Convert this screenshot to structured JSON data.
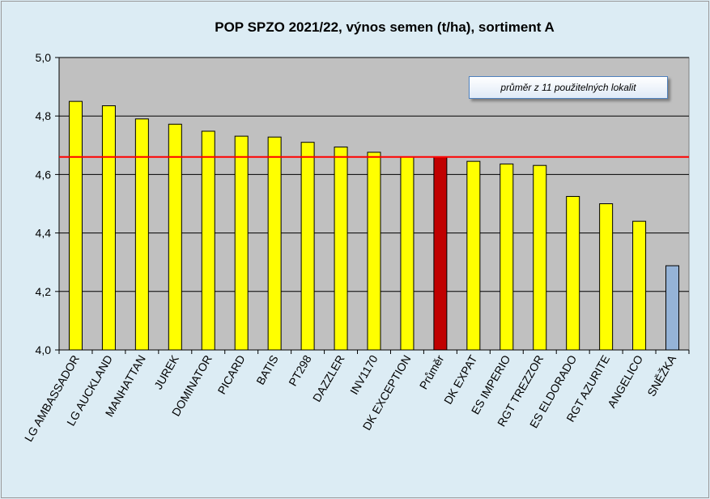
{
  "chart_data": {
    "type": "bar",
    "title": "POP SPZO 2021/22, výnos semen (t/ha), sortiment A",
    "xlabel": "",
    "ylabel": "",
    "ylim": [
      4.0,
      5.0
    ],
    "yticks": [
      "4,0",
      "4,2",
      "4,4",
      "4,6",
      "4,8",
      "5,0"
    ],
    "yticks_values": [
      4.0,
      4.2,
      4.4,
      4.6,
      4.8,
      5.0
    ],
    "grid": true,
    "categories": [
      "LG AMBASSADOR",
      "LG AUCKLAND",
      "MANHATTAN",
      "JUREK",
      "DOMINATOR",
      "PICARD",
      "BATIS",
      "PT298",
      "DAZZLER",
      "INV1170",
      "DK EXCEPTION",
      "Průměr",
      "DK EXPAT",
      "ES IMPERIO",
      "RGT TREZZOR",
      "ES ELDORADO",
      "RGT AZURITE",
      "ANGELICO",
      "SNĚŽKA"
    ],
    "values": [
      4.85,
      4.835,
      4.79,
      4.772,
      4.748,
      4.731,
      4.728,
      4.71,
      4.694,
      4.676,
      4.66,
      4.66,
      4.645,
      4.636,
      4.631,
      4.525,
      4.5,
      4.44,
      4.288
    ],
    "bar_colors": [
      "#ffff00",
      "#ffff00",
      "#ffff00",
      "#ffff00",
      "#ffff00",
      "#ffff00",
      "#ffff00",
      "#ffff00",
      "#ffff00",
      "#ffff00",
      "#ffff00",
      "#c00000",
      "#ffff00",
      "#ffff00",
      "#ffff00",
      "#ffff00",
      "#ffff00",
      "#ffff00",
      "#95b3d7"
    ],
    "reference_line": {
      "value": 4.66,
      "color": "#ff0000"
    },
    "annotation": "průměr z 11 použitelných lokalit",
    "plot_background": "#c0c0c0",
    "page_background": "#dcecf4"
  }
}
